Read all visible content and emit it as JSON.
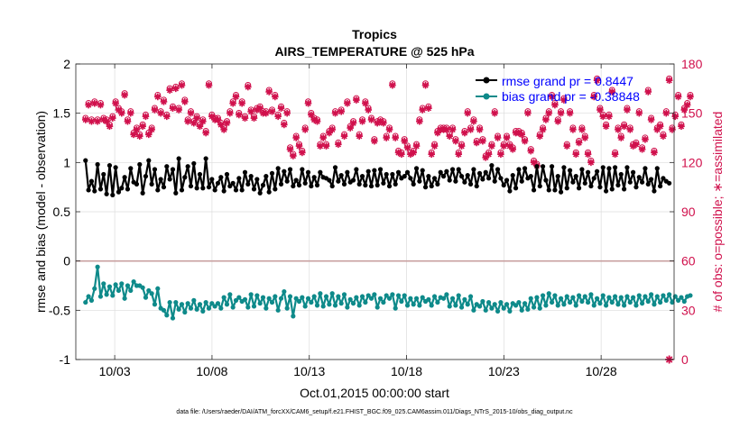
{
  "chart_data": {
    "type": "line",
    "title": "Tropics",
    "subtitle": "AIRS_TEMPERATURE @ 525 hPa",
    "xlabel": "Oct.01,2015 00:00:00 start",
    "ylabel": "rmse and bias (model - observation)",
    "ylabel_right": "# of obs: o=possible; ∗=assimilated",
    "footer": "data file: /Users/raeder/DAI/ATM_forcXX/CAM6_setup/f.e21.FHIST_BGC.f09_025.CAM6assim.011/Diags_NTrS_2015-10/obs_diag_output.nc",
    "grid": true,
    "legend_position": "top-right",
    "xlim": [
      0.5,
      31.25
    ],
    "ylim": [
      -1,
      2
    ],
    "ylim_right": [
      0,
      180
    ],
    "x_ticks": [
      2.5,
      7.5,
      12.5,
      17.5,
      22.5,
      27.5
    ],
    "x_tick_labels": [
      "10/03",
      "10/08",
      "10/13",
      "10/18",
      "10/23",
      "10/28"
    ],
    "y_tick_labels": [
      "2",
      "1.5",
      "1",
      "0.5",
      "0",
      "-0.5",
      "-1"
    ],
    "y_right_tick_labels": [
      "180",
      "150",
      "120",
      "90",
      "60",
      "30",
      "0"
    ],
    "zero_line": 0,
    "series": [
      {
        "name": "rmse grand pr = 0.8447",
        "color": "#000000",
        "axis": "left",
        "values": [
          1.02,
          0.72,
          0.81,
          0.71,
          0.98,
          0.73,
          0.88,
          0.68,
          0.97,
          0.67,
          0.95,
          0.7,
          0.74,
          0.85,
          0.73,
          0.94,
          0.8,
          0.78,
          0.98,
          0.69,
          0.86,
          1.02,
          0.78,
          0.93,
          0.72,
          0.83,
          0.75,
          0.96,
          0.83,
          0.93,
          0.69,
          1.04,
          0.72,
          0.85,
          0.96,
          0.76,
          0.99,
          0.74,
          0.88,
          0.74,
          1.04,
          0.75,
          0.83,
          0.72,
          0.79,
          0.85,
          0.71,
          0.88,
          0.76,
          0.79,
          0.72,
          0.84,
          0.72,
          0.9,
          0.78,
          0.86,
          0.73,
          0.83,
          0.69,
          0.77,
          0.86,
          0.7,
          0.89,
          0.73,
          0.94,
          0.78,
          0.91,
          0.81,
          0.93,
          0.76,
          0.82,
          0.77,
          0.93,
          0.79,
          0.9,
          0.76,
          0.85,
          0.77,
          0.9,
          0.85,
          0.84,
          0.82,
          0.76,
          0.95,
          0.81,
          0.87,
          0.78,
          0.9,
          0.8,
          0.82,
          0.93,
          0.78,
          0.86,
          0.77,
          0.91,
          0.76,
          0.92,
          0.77,
          0.93,
          0.79,
          0.88,
          0.76,
          0.88,
          0.78,
          0.9,
          0.84,
          0.86,
          0.9,
          0.84,
          0.78,
          0.94,
          0.81,
          0.92,
          0.75,
          0.86,
          0.76,
          0.84,
          0.78,
          0.9,
          0.86,
          0.91,
          0.82,
          0.93,
          0.81,
          0.93,
          0.86,
          0.8,
          0.87,
          0.78,
          0.93,
          0.76,
          0.89,
          0.83,
          0.9,
          0.84,
          0.97,
          0.81,
          0.93,
          0.84,
          0.77,
          0.82,
          0.71,
          0.87,
          0.74,
          0.93,
          0.81,
          0.94,
          0.84,
          0.86,
          0.72,
          0.96,
          0.76,
          0.96,
          0.82,
          0.72,
          0.96,
          0.72,
          0.86,
          0.7,
          0.95,
          0.74,
          0.92,
          0.8,
          0.86,
          0.74,
          0.93,
          0.79,
          0.9,
          0.76,
          0.84,
          0.91,
          0.75,
          0.95,
          0.71,
          0.94,
          0.73,
          0.95,
          0.77,
          0.88,
          0.73,
          0.95,
          0.8,
          0.9,
          0.75,
          0.85,
          0.8,
          0.94,
          0.78,
          0.83,
          0.71,
          0.94,
          0.76,
          0.84,
          0.81,
          0.79
        ]
      },
      {
        "name": "bias grand pr = -0.38848",
        "color": "#0e8a8a",
        "axis": "left",
        "values": [
          -0.42,
          -0.36,
          -0.4,
          -0.28,
          -0.06,
          -0.36,
          -0.23,
          -0.34,
          -0.26,
          -0.35,
          -0.24,
          -0.3,
          -0.23,
          -0.38,
          -0.25,
          -0.3,
          -0.21,
          -0.25,
          -0.25,
          -0.27,
          -0.37,
          -0.3,
          -0.33,
          -0.44,
          -0.28,
          -0.48,
          -0.5,
          -0.55,
          -0.42,
          -0.58,
          -0.42,
          -0.49,
          -0.44,
          -0.52,
          -0.43,
          -0.48,
          -0.4,
          -0.49,
          -0.44,
          -0.51,
          -0.42,
          -0.48,
          -0.43,
          -0.46,
          -0.43,
          -0.48,
          -0.37,
          -0.44,
          -0.34,
          -0.47,
          -0.4,
          -0.37,
          -0.41,
          -0.39,
          -0.47,
          -0.34,
          -0.46,
          -0.35,
          -0.43,
          -0.37,
          -0.48,
          -0.38,
          -0.42,
          -0.36,
          -0.5,
          -0.38,
          -0.31,
          -0.48,
          -0.36,
          -0.56,
          -0.38,
          -0.41,
          -0.37,
          -0.46,
          -0.38,
          -0.42,
          -0.36,
          -0.45,
          -0.33,
          -0.46,
          -0.36,
          -0.44,
          -0.33,
          -0.45,
          -0.36,
          -0.43,
          -0.34,
          -0.47,
          -0.39,
          -0.43,
          -0.37,
          -0.45,
          -0.36,
          -0.42,
          -0.35,
          -0.38,
          -0.34,
          -0.47,
          -0.38,
          -0.42,
          -0.35,
          -0.38,
          -0.34,
          -0.48,
          -0.35,
          -0.41,
          -0.35,
          -0.45,
          -0.38,
          -0.44,
          -0.38,
          -0.45,
          -0.37,
          -0.41,
          -0.39,
          -0.45,
          -0.36,
          -0.42,
          -0.37,
          -0.38,
          -0.34,
          -0.46,
          -0.38,
          -0.45,
          -0.35,
          -0.47,
          -0.39,
          -0.44,
          -0.36,
          -0.5,
          -0.44,
          -0.46,
          -0.41,
          -0.5,
          -0.42,
          -0.48,
          -0.44,
          -0.51,
          -0.42,
          -0.48,
          -0.44,
          -0.51,
          -0.43,
          -0.45,
          -0.42,
          -0.5,
          -0.43,
          -0.49,
          -0.38,
          -0.47,
          -0.37,
          -0.48,
          -0.35,
          -0.45,
          -0.33,
          -0.42,
          -0.35,
          -0.45,
          -0.38,
          -0.44,
          -0.36,
          -0.42,
          -0.37,
          -0.45,
          -0.35,
          -0.41,
          -0.36,
          -0.42,
          -0.34,
          -0.45,
          -0.38,
          -0.43,
          -0.35,
          -0.45,
          -0.37,
          -0.42,
          -0.36,
          -0.44,
          -0.37,
          -0.45,
          -0.36,
          -0.42,
          -0.37,
          -0.45,
          -0.35,
          -0.43,
          -0.36,
          -0.41,
          -0.34,
          -0.44,
          -0.36,
          -0.42,
          -0.35,
          -0.4,
          -0.34,
          -0.42,
          -0.36,
          -0.4,
          -0.37,
          -0.41,
          -0.36,
          -0.35
        ]
      },
      {
        "name": "obs_count_assimilated",
        "color": "#d0104c",
        "axis": "right",
        "marker": "asterisk",
        "values": [
          146,
          155,
          145,
          156,
          145,
          155,
          146,
          145,
          142,
          147,
          156,
          152,
          150,
          161,
          145,
          150,
          137,
          140,
          136,
          142,
          148,
          137,
          140,
          152,
          160,
          150,
          157,
          148,
          164,
          153,
          165,
          152,
          167,
          157,
          145,
          150,
          144,
          147,
          142,
          145,
          138,
          167,
          148,
          146,
          146,
          143,
          140,
          144,
          150,
          156,
          160,
          149,
          156,
          147,
          166,
          151,
          147,
          152,
          153,
          150,
          150,
          163,
          151,
          160,
          148,
          153,
          143,
          150,
          128,
          124,
          135,
          130,
          126,
          140,
          156,
          149,
          146,
          145,
          130,
          135,
          130,
          138,
          140,
          150,
          131,
          151,
          136,
          156,
          141,
          144,
          158,
          136,
          145,
          156,
          152,
          146,
          133,
          144,
          145,
          144,
          135,
          140,
          167,
          135,
          126,
          125,
          133,
          129,
          125,
          126,
          130,
          145,
          152,
          167,
          153,
          125,
          130,
          138,
          140,
          140,
          140,
          136,
          140,
          133,
          125,
          130,
          138,
          150,
          140,
          145,
          132,
          140,
          133,
          123,
          125,
          130,
          150,
          135,
          125,
          130,
          135,
          130,
          128,
          138,
          138,
          137,
          133,
          150,
          127,
          120,
          118,
          136,
          140,
          146,
          150,
          160,
          155,
          145,
          150,
          158,
          130,
          150,
          140,
          125,
          132,
          140,
          135,
          125,
          120,
          160,
          170,
          152,
          148,
          142,
          148,
          163,
          125,
          140,
          135,
          142,
          152,
          140,
          130,
          131,
          150,
          128,
          134,
          163,
          146,
          126,
          140,
          142,
          136,
          150,
          170,
          140,
          148,
          160,
          142,
          152,
          155,
          160
        ],
        "zero_count_days": [
          31
        ]
      },
      {
        "name": "obs_count_possible",
        "color": "#d0104c",
        "axis": "right",
        "marker": "circle",
        "values": [
          146,
          155,
          145,
          156,
          145,
          155,
          146,
          145,
          142,
          147,
          156,
          152,
          150,
          161,
          145,
          150,
          137,
          140,
          136,
          142,
          148,
          137,
          140,
          152,
          160,
          150,
          157,
          148,
          164,
          153,
          165,
          152,
          167,
          157,
          145,
          150,
          144,
          147,
          142,
          145,
          138,
          167,
          148,
          146,
          146,
          143,
          140,
          144,
          150,
          156,
          160,
          149,
          156,
          147,
          166,
          151,
          147,
          152,
          153,
          150,
          150,
          163,
          151,
          160,
          148,
          153,
          143,
          150,
          128,
          124,
          135,
          130,
          126,
          140,
          156,
          149,
          146,
          145,
          130,
          135,
          130,
          138,
          140,
          150,
          131,
          151,
          136,
          156,
          141,
          144,
          158,
          136,
          145,
          156,
          152,
          146,
          133,
          144,
          145,
          144,
          135,
          140,
          167,
          135,
          126,
          125,
          133,
          129,
          125,
          126,
          130,
          145,
          152,
          167,
          153,
          125,
          130,
          138,
          140,
          140,
          140,
          136,
          140,
          133,
          125,
          130,
          138,
          150,
          140,
          145,
          132,
          140,
          133,
          123,
          125,
          130,
          150,
          135,
          125,
          130,
          135,
          130,
          128,
          138,
          138,
          137,
          133,
          150,
          127,
          120,
          118,
          136,
          140,
          146,
          150,
          160,
          155,
          145,
          150,
          158,
          130,
          150,
          140,
          125,
          132,
          140,
          135,
          125,
          120,
          160,
          170,
          152,
          148,
          142,
          148,
          163,
          125,
          140,
          135,
          142,
          152,
          140,
          130,
          131,
          150,
          128,
          134,
          163,
          146,
          126,
          140,
          142,
          136,
          150,
          170,
          140,
          148,
          160,
          142,
          152,
          155,
          160
        ]
      }
    ]
  }
}
